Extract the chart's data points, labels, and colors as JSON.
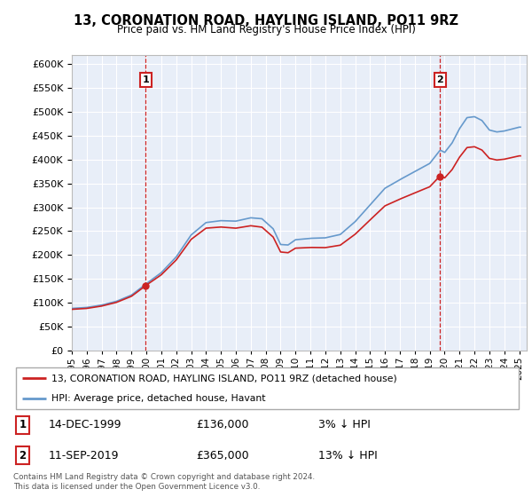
{
  "title": "13, CORONATION ROAD, HAYLING ISLAND, PO11 9RZ",
  "subtitle": "Price paid vs. HM Land Registry's House Price Index (HPI)",
  "legend_line1": "13, CORONATION ROAD, HAYLING ISLAND, PO11 9RZ (detached house)",
  "legend_line2": "HPI: Average price, detached house, Havant",
  "footnote": "Contains HM Land Registry data © Crown copyright and database right 2024.\nThis data is licensed under the Open Government Licence v3.0.",
  "sale1_label": "1",
  "sale1_date": "14-DEC-1999",
  "sale1_price": "£136,000",
  "sale1_hpi": "3% ↓ HPI",
  "sale2_label": "2",
  "sale2_date": "11-SEP-2019",
  "sale2_price": "£365,000",
  "sale2_hpi": "13% ↓ HPI",
  "sale1_x": 1999.96,
  "sale1_y": 136000,
  "sale2_x": 2019.7,
  "sale2_y": 365000,
  "ylim": [
    0,
    620000
  ],
  "xlim_start": 1995.0,
  "xlim_end": 2025.5,
  "bg_color": "#e8eef8",
  "grid_color": "#ffffff",
  "hpi_color": "#6699cc",
  "price_color": "#cc2222",
  "dashed_color": "#cc2222",
  "yticks": [
    0,
    50000,
    100000,
    150000,
    200000,
    250000,
    300000,
    350000,
    400000,
    450000,
    500000,
    550000,
    600000
  ],
  "xticks": [
    1995,
    1996,
    1997,
    1998,
    1999,
    2000,
    2001,
    2002,
    2003,
    2004,
    2005,
    2006,
    2007,
    2008,
    2009,
    2010,
    2011,
    2012,
    2013,
    2014,
    2015,
    2016,
    2017,
    2018,
    2019,
    2020,
    2021,
    2022,
    2023,
    2024,
    2025
  ]
}
